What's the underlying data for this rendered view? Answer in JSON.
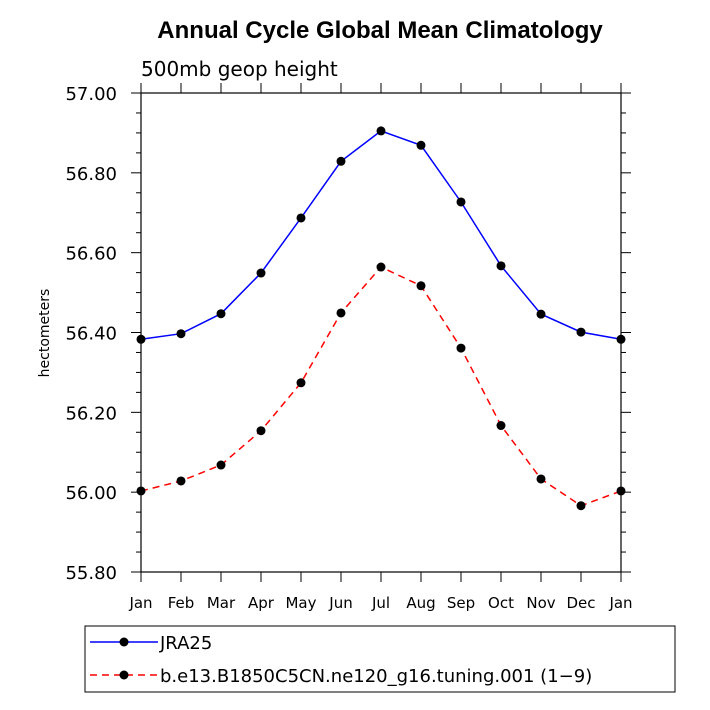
{
  "chart_data": {
    "type": "line",
    "title": "Annual Cycle Global Mean Climatology",
    "subtitle": "500mb geop height",
    "xlabel": "",
    "ylabel": "hectometers",
    "categories": [
      "Jan",
      "Feb",
      "Mar",
      "Apr",
      "May",
      "Jun",
      "Jul",
      "Aug",
      "Sep",
      "Oct",
      "Nov",
      "Dec",
      "Jan"
    ],
    "ylim": [
      55.8,
      57.0
    ],
    "yticks": [
      "55.80",
      "56.00",
      "56.20",
      "56.40",
      "56.60",
      "56.80",
      "57.00"
    ],
    "series": [
      {
        "name": "JRA25",
        "color": "#0000ff",
        "dash": "solid",
        "marker": "circle",
        "values": [
          56.383,
          56.397,
          56.447,
          56.549,
          56.687,
          56.829,
          56.905,
          56.869,
          56.727,
          56.567,
          56.446,
          56.401,
          56.383
        ]
      },
      {
        "name": "b.e13.B1850C5CN.ne120_g16.tuning.001 (1−9)",
        "color": "#ff0000",
        "dash": "dashed",
        "marker": "circle",
        "values": [
          56.003,
          56.028,
          56.068,
          56.154,
          56.274,
          56.449,
          56.564,
          56.517,
          56.361,
          56.167,
          56.033,
          55.966,
          56.003
        ]
      }
    ],
    "legend_position": "bottom-left",
    "grid": false
  }
}
